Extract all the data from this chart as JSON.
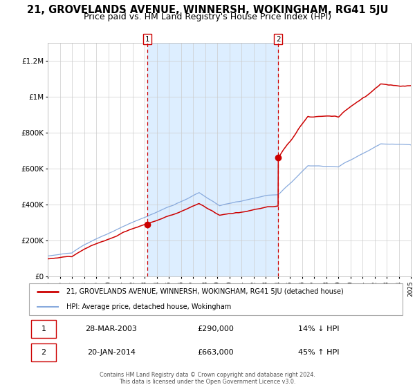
{
  "title": "21, GROVELANDS AVENUE, WINNERSH, WOKINGHAM, RG41 5JU",
  "subtitle": "Price paid vs. HM Land Registry's House Price Index (HPI)",
  "ylim": [
    0,
    1300000
  ],
  "yticks": [
    0,
    200000,
    400000,
    600000,
    800000,
    1000000,
    1200000
  ],
  "ytick_labels": [
    "£0",
    "£200K",
    "£400K",
    "£600K",
    "£800K",
    "£1M",
    "£1.2M"
  ],
  "x_start_year": 1995,
  "x_end_year": 2025,
  "red_line_color": "#cc0000",
  "blue_line_color": "#88aadd",
  "shading_color": "#ddeeff",
  "marker1_year": 2003.23,
  "marker1_value": 290000,
  "marker1_label": "28-MAR-2003",
  "marker1_price": "£290,000",
  "marker1_hpi": "14% ↓ HPI",
  "marker2_year": 2014.05,
  "marker2_value": 663000,
  "marker2_label": "20-JAN-2014",
  "marker2_price": "£663,000",
  "marker2_hpi": "45% ↑ HPI",
  "legend_line1": "21, GROVELANDS AVENUE, WINNERSH, WOKINGHAM, RG41 5JU (detached house)",
  "legend_line2": "HPI: Average price, detached house, Wokingham",
  "footer": "Contains HM Land Registry data © Crown copyright and database right 2024.\nThis data is licensed under the Open Government Licence v3.0.",
  "title_fontsize": 10.5,
  "subtitle_fontsize": 9,
  "background_color": "#ffffff",
  "grid_color": "#cccccc"
}
